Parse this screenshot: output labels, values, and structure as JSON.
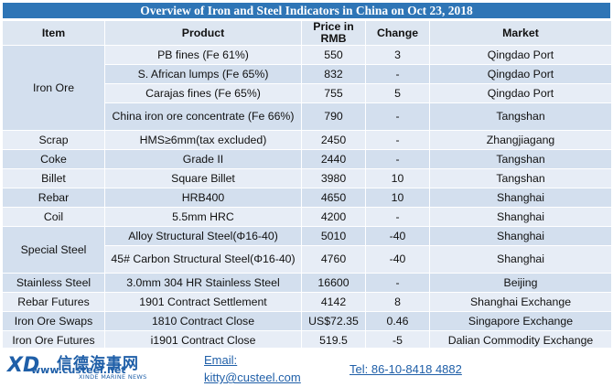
{
  "title": "Overview of Iron and Steel Indicators in China on Oct 23, 2018",
  "columns": [
    "Item",
    "Product",
    "Price in RMB",
    "Change",
    "Market"
  ],
  "rows": [
    {
      "item": "Iron Ore",
      "product": "PB fines (Fe 61%)",
      "price": "550",
      "change": "3",
      "market": "Qingdao Port"
    },
    {
      "item": "",
      "product": "S. African lumps (Fe 65%)",
      "price": "832",
      "change": "-",
      "market": "Qingdao Port"
    },
    {
      "item": "",
      "product": "Carajas fines (Fe 65%)",
      "price": "755",
      "change": "5",
      "market": "Qingdao Port"
    },
    {
      "item": "",
      "product": "China iron ore concentrate (Fe 66%)",
      "price": "790",
      "change": "-",
      "market": "Tangshan"
    },
    {
      "item": "Scrap",
      "product": "HMS≥6mm(tax excluded)",
      "price": "2450",
      "change": "-",
      "market": "Zhangjiagang"
    },
    {
      "item": "Coke",
      "product": "Grade II",
      "price": "2440",
      "change": "-",
      "market": "Tangshan"
    },
    {
      "item": "Billet",
      "product": "Square Billet",
      "price": "3980",
      "change": "10",
      "market": "Tangshan"
    },
    {
      "item": "Rebar",
      "product": "HRB400",
      "price": "4650",
      "change": "10",
      "market": "Shanghai"
    },
    {
      "item": "Coil",
      "product": "5.5mm HRC",
      "price": "4200",
      "change": "-",
      "market": "Shanghai"
    },
    {
      "item": "Special Steel",
      "product": "Alloy Structural Steel(Φ16-40)",
      "price": "5010",
      "change": "-40",
      "market": "Shanghai"
    },
    {
      "item": "",
      "product": "45# Carbon Structural Steel(Φ16-40)",
      "price": "4760",
      "change": "-40",
      "market": "Shanghai"
    },
    {
      "item": "Stainless Steel",
      "product": "3.0mm 304 HR Stainless Steel",
      "price": "16600",
      "change": "-",
      "market": "Beijing"
    },
    {
      "item": "Rebar Futures",
      "product": "1901 Contract Settlement",
      "price": "4142",
      "change": "8",
      "market": "Shanghai Exchange"
    },
    {
      "item": "Iron Ore Swaps",
      "product": "1810 Contract Close",
      "price": "US$72.35",
      "change": "0.46",
      "market": "Singapore Exchange"
    },
    {
      "item": "Iron Ore Futures",
      "product": "i1901 Contract Close",
      "price": "519.5",
      "change": "-5",
      "market": "Dalian Commodity Exchange"
    }
  ],
  "footer": {
    "logo_cn": "信德海事网",
    "logo_url": "www.custeel.net",
    "logo_sub": "XINDE MARINE NEWS",
    "email_label": "Email:",
    "email": "kitty@custeel.com",
    "tel": "Tel: 86-10-8418 4882"
  }
}
